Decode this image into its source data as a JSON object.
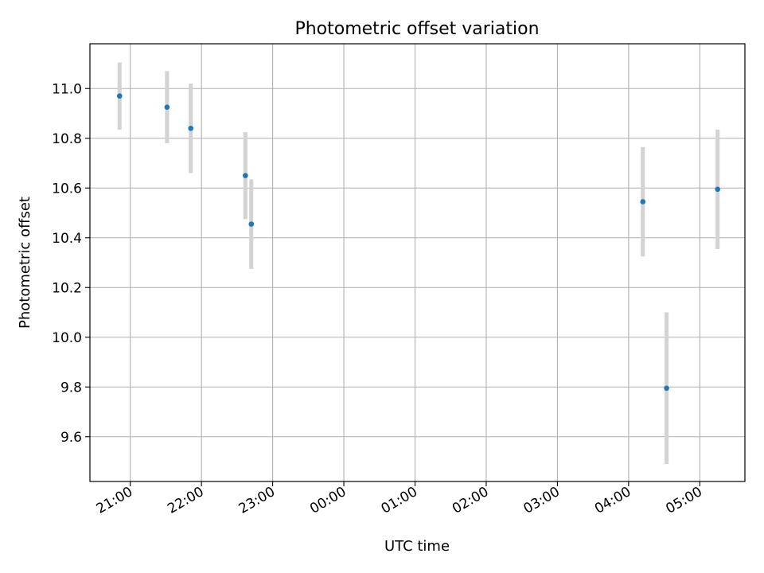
{
  "chart_data": {
    "type": "scatter",
    "title": "Photometric offset variation",
    "xlabel": "UTC time",
    "ylabel": "Photometric offset",
    "xlim": [
      "20:26",
      "05:38"
    ],
    "ylim": [
      9.42,
      11.18
    ],
    "x_ticks": [
      "21:00",
      "22:00",
      "23:00",
      "00:00",
      "01:00",
      "02:00",
      "03:00",
      "04:00",
      "05:00"
    ],
    "y_ticks": [
      9.6,
      9.8,
      10.0,
      10.2,
      10.4,
      10.6,
      10.8,
      11.0
    ],
    "grid": true,
    "marker_color": "#1f77b4",
    "errorbar_color": "#d3d3d3",
    "points": [
      {
        "t": "20:51",
        "y": 10.97,
        "err": 0.135
      },
      {
        "t": "21:31",
        "y": 10.925,
        "err": 0.145
      },
      {
        "t": "21:51",
        "y": 10.84,
        "err": 0.18
      },
      {
        "t": "22:37",
        "y": 10.65,
        "err": 0.175
      },
      {
        "t": "22:42",
        "y": 10.455,
        "err": 0.18
      },
      {
        "t": "04:12",
        "y": 10.545,
        "err": 0.22
      },
      {
        "t": "04:32",
        "y": 9.795,
        "err": 0.305
      },
      {
        "t": "05:15",
        "y": 10.595,
        "err": 0.24
      }
    ]
  }
}
